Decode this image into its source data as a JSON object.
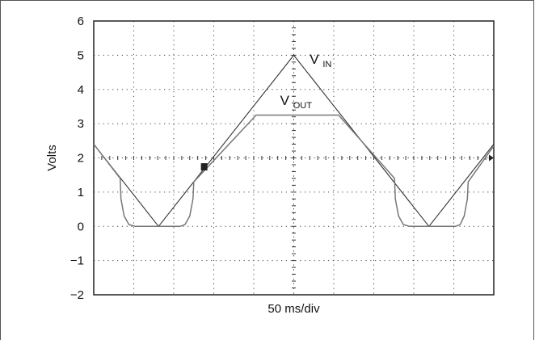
{
  "chart_data": {
    "type": "line",
    "title": "",
    "xlabel": "50 ms/div",
    "ylabel": "Volts",
    "xlim": [
      0,
      500
    ],
    "ylim": [
      -2,
      6
    ],
    "y_ticks": [
      "6",
      "5",
      "4",
      "3",
      "2",
      "1",
      "0",
      "−1",
      "−2"
    ],
    "grid": true,
    "series": [
      {
        "name": "V_IN",
        "label_main": "V",
        "label_sub": "IN",
        "color": "#333333",
        "x": [
          0,
          81,
          250,
          419,
          500
        ],
        "y": [
          2.4,
          0.0,
          5.0,
          0.0,
          2.4
        ]
      },
      {
        "name": "V_OUT",
        "label_main": "V",
        "label_sub": "OUT",
        "color": "#777777",
        "x": [
          0,
          33,
          34,
          38,
          44,
          52,
          81,
          108,
          114,
          120,
          124,
          125,
          203,
          306,
          376,
          377,
          381,
          387,
          395,
          420,
          452,
          458,
          463,
          467,
          468,
          500
        ],
        "y": [
          2.4,
          1.4,
          0.8,
          0.3,
          0.05,
          0.0,
          0.0,
          0.0,
          0.05,
          0.3,
          0.8,
          1.3,
          3.25,
          3.25,
          1.4,
          0.8,
          0.3,
          0.05,
          0.0,
          0.0,
          0.0,
          0.05,
          0.3,
          0.8,
          1.3,
          2.35
        ]
      }
    ],
    "trigger_marker": {
      "x": 138,
      "y": 1.75
    },
    "level_marker": {
      "y": 2.0
    }
  }
}
